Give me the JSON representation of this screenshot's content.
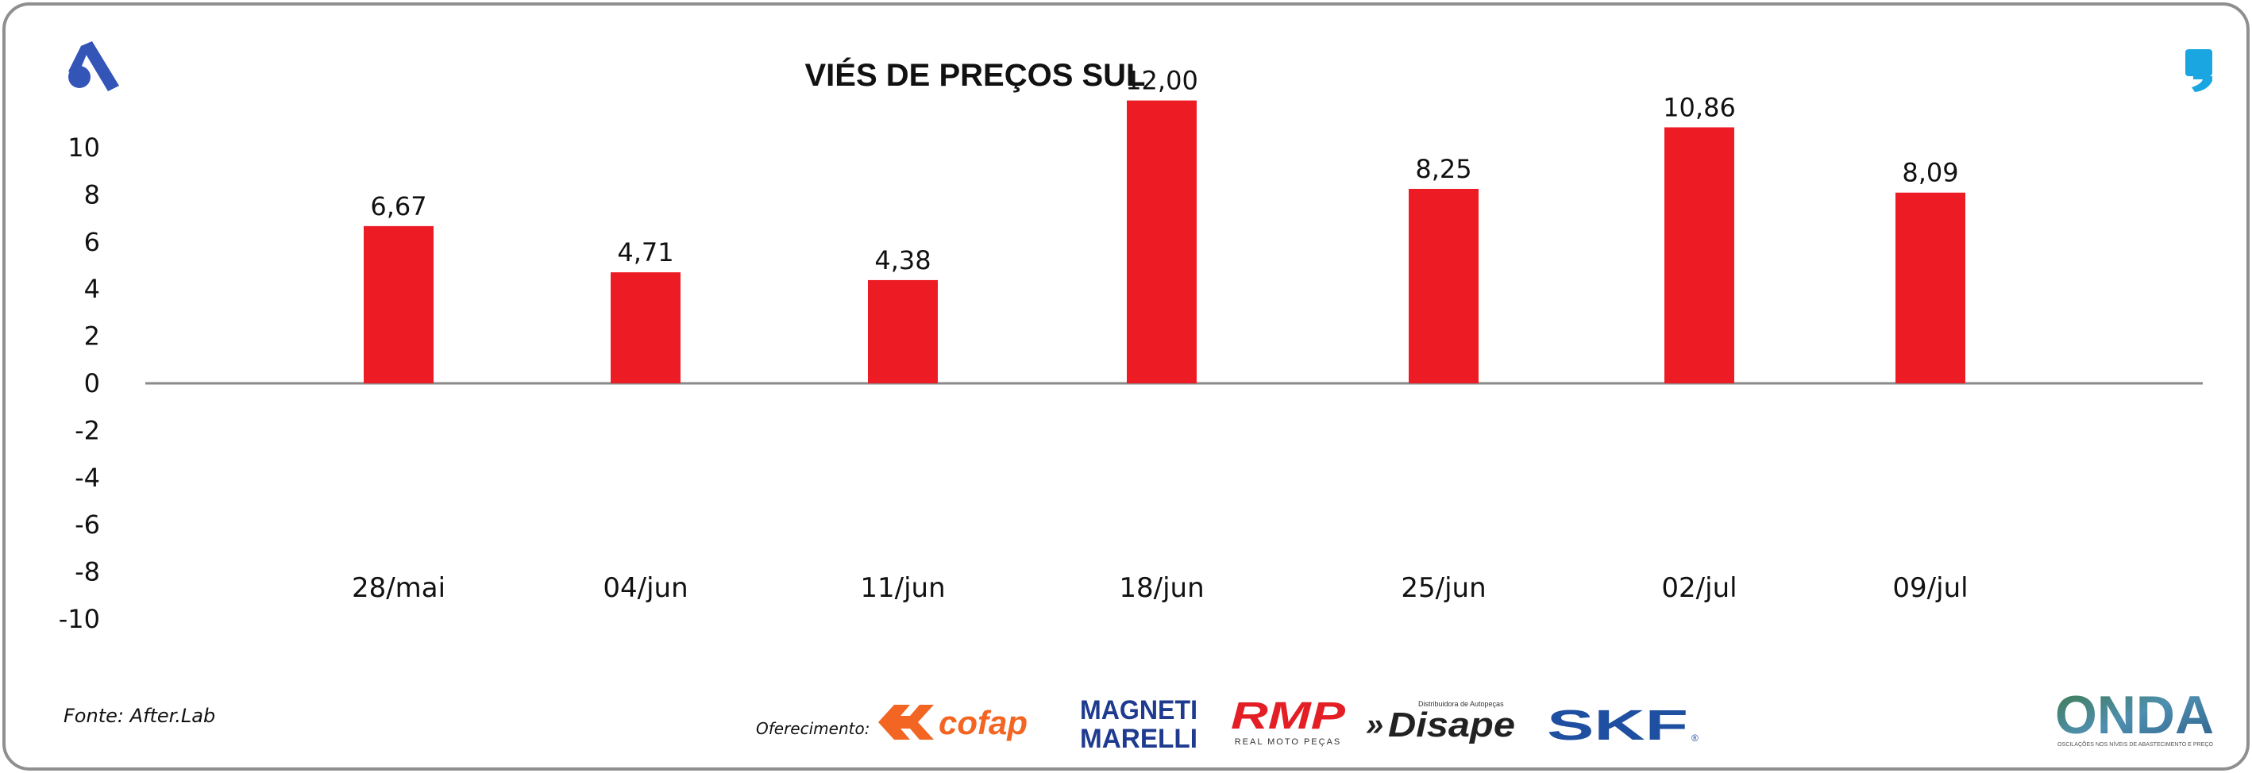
{
  "chart_data": {
    "type": "bar",
    "title": "VIÉS DE PREÇOS SUL",
    "categories": [
      "28/mai",
      "04/jun",
      "11/jun",
      "18/jun",
      "25/jun",
      "02/jul",
      "09/jul"
    ],
    "values": [
      6.67,
      4.71,
      4.38,
      12.0,
      8.25,
      10.86,
      8.09
    ],
    "value_labels": [
      "6,67",
      "4,71",
      "4,38",
      "12,00",
      "8,25",
      "10,86",
      "8,09"
    ],
    "yticks": [
      10,
      8,
      6,
      4,
      2,
      0,
      -2,
      -4,
      -6,
      -8,
      -10
    ],
    "ylim": [
      -10,
      10
    ],
    "xlabel": "",
    "ylabel": "",
    "grid": false,
    "legend": "none",
    "bar_color": "#ed1c24",
    "axis_color": "#8a8a8a"
  },
  "footer": {
    "source": "Fonte: After.Lab",
    "sponsor_label": "Oferecimento:",
    "sponsors": [
      {
        "name": "cofap",
        "text": "cofap",
        "color": "#f26522"
      },
      {
        "name": "magneti-marelli",
        "line1": "MAGNETI",
        "line2": "MARELLI",
        "color": "#1f3b8f"
      },
      {
        "name": "rmp",
        "text": "RMP",
        "subtext": "REAL MOTO PEÇAS",
        "color": "#e31e24"
      },
      {
        "name": "disape",
        "text": "Disape",
        "small": "Distribuidora de Autopeças",
        "color": "#222222"
      },
      {
        "name": "skf",
        "text": "SKF",
        "color": "#1e4fa0"
      }
    ],
    "brand": {
      "text": "ONDA",
      "subtext": "OSCILAÇÕES NOS NÍVEIS DE ABASTECIMENTO E PREÇO",
      "color": "#3a6b8c"
    }
  },
  "colors": {
    "corner_left_logo": "#3355b8",
    "corner_right_logo": "#1aa6e0",
    "frame": "#8f8f8f"
  }
}
